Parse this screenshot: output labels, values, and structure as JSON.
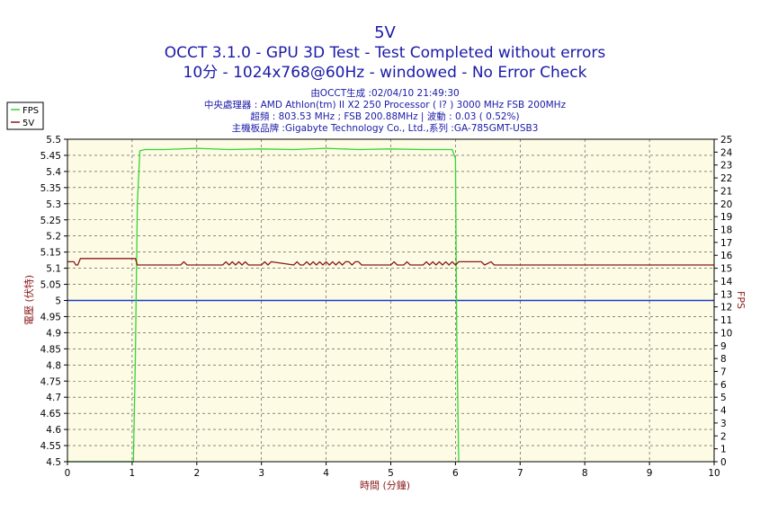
{
  "chart_data": {
    "type": "line",
    "title": "5V",
    "subtitle_lines": [
      "OCCT 3.1.0 - GPU 3D Test - Test Completed without errors",
      "10分 - 1024x768@60Hz - windowed - No Error Check"
    ],
    "info_lines": [
      "由OCCT生成 :02/04/10 21:49:30",
      "中央處理器 : AMD Athlon(tm) II X2 250 Processor (  l? ) 3000 MHz FSB 200MHz",
      "超頻 : 803.53 MHz ; FSB 200.88MHz | 波動 : 0.03 ( 0.52%)",
      "主機板品牌 :Gigabyte Technology Co., Ltd.,系列 :GA-785GMT-USB3"
    ],
    "xlabel": "時間 (分鐘)",
    "ylabel_left": "電壓 (伏特)",
    "ylabel_right": "FPS",
    "xlim": [
      0,
      10
    ],
    "ylim_left": [
      4.5,
      5.5
    ],
    "ylim_right": [
      0,
      25
    ],
    "x_ticks": [
      "0",
      "1",
      "2",
      "3",
      "4",
      "5",
      "6",
      "7",
      "8",
      "9",
      "10"
    ],
    "y_left_ticks": [
      "4.5",
      "4.55",
      "4.6",
      "4.65",
      "4.7",
      "4.75",
      "4.8",
      "4.85",
      "4.9",
      "4.95",
      "5",
      "5.05",
      "5.1",
      "5.15",
      "5.2",
      "5.25",
      "5.3",
      "5.35",
      "5.4",
      "5.45",
      "5.5"
    ],
    "y_right_ticks": [
      "0",
      "1",
      "2",
      "3",
      "4",
      "5",
      "6",
      "7",
      "8",
      "9",
      "10",
      "11",
      "12",
      "13",
      "14",
      "15",
      "16",
      "17",
      "18",
      "19",
      "20",
      "21",
      "22",
      "23",
      "24",
      "25"
    ],
    "grid": true,
    "legend_position": "top-left",
    "reference_line": {
      "y": 5.0,
      "color": "#1a3cc8"
    },
    "series": [
      {
        "name": "FPS",
        "axis": "right",
        "color": "#33d633",
        "x": [
          0.0,
          1.02,
          1.05,
          1.08,
          1.12,
          1.2,
          1.5,
          2.0,
          2.5,
          3.0,
          3.5,
          4.0,
          4.5,
          5.0,
          5.5,
          5.95,
          6.0,
          6.02,
          6.05
        ],
        "values": [
          0,
          0,
          8,
          20,
          24.1,
          24.2,
          24.2,
          24.3,
          24.2,
          24.25,
          24.2,
          24.3,
          24.2,
          24.25,
          24.2,
          24.2,
          23.5,
          10,
          0
        ]
      },
      {
        "name": "5V",
        "axis": "left",
        "color": "#8b1a1a",
        "x": [
          0.0,
          0.1,
          0.13,
          0.16,
          0.2,
          0.5,
          1.0,
          1.05,
          1.08,
          1.5,
          1.75,
          1.8,
          1.85,
          2.0,
          2.4,
          2.45,
          2.5,
          2.55,
          2.6,
          2.65,
          2.7,
          2.75,
          2.8,
          3.0,
          3.05,
          3.1,
          3.15,
          3.5,
          3.55,
          3.6,
          3.65,
          3.7,
          3.75,
          3.8,
          3.85,
          3.9,
          3.95,
          4.0,
          4.05,
          4.1,
          4.15,
          4.2,
          4.25,
          4.3,
          4.35,
          4.4,
          4.45,
          4.5,
          4.55,
          4.6,
          4.65,
          5.0,
          5.05,
          5.1,
          5.2,
          5.25,
          5.3,
          5.5,
          5.55,
          5.6,
          5.65,
          5.7,
          5.75,
          5.8,
          5.85,
          5.9,
          5.95,
          6.0,
          6.05,
          6.1,
          6.4,
          6.45,
          6.55,
          6.6,
          7.0,
          8.0,
          9.0,
          10.0
        ],
        "values": [
          5.12,
          5.12,
          5.11,
          5.11,
          5.13,
          5.13,
          5.13,
          5.13,
          5.11,
          5.11,
          5.11,
          5.12,
          5.11,
          5.11,
          5.11,
          5.12,
          5.11,
          5.12,
          5.11,
          5.12,
          5.11,
          5.12,
          5.11,
          5.11,
          5.12,
          5.11,
          5.12,
          5.11,
          5.12,
          5.11,
          5.11,
          5.12,
          5.11,
          5.12,
          5.11,
          5.12,
          5.11,
          5.12,
          5.11,
          5.12,
          5.11,
          5.12,
          5.11,
          5.12,
          5.12,
          5.11,
          5.12,
          5.12,
          5.11,
          5.11,
          5.11,
          5.11,
          5.12,
          5.11,
          5.11,
          5.12,
          5.11,
          5.11,
          5.12,
          5.11,
          5.12,
          5.11,
          5.12,
          5.11,
          5.12,
          5.11,
          5.12,
          5.11,
          5.12,
          5.12,
          5.12,
          5.11,
          5.12,
          5.11,
          5.11,
          5.11,
          5.11,
          5.11
        ]
      }
    ],
    "colors": {
      "title": "#1a1aa8",
      "axis_title": "#8b1a1a",
      "plot_background": "#fdfbe4",
      "grid": "#444444"
    }
  }
}
